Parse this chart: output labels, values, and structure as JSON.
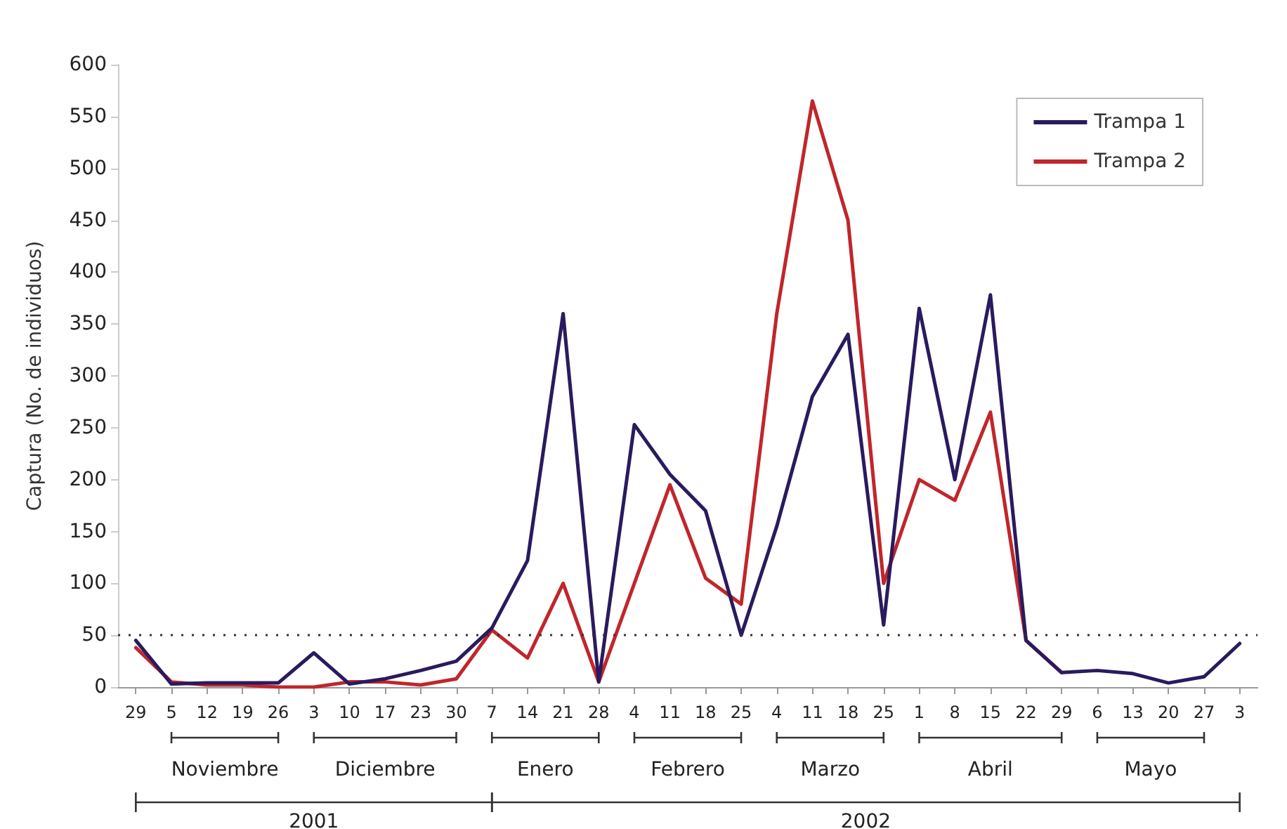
{
  "chart_data": {
    "type": "line",
    "ylabel": "Captura (No. de individuos)",
    "categories": [
      "29",
      "5",
      "12",
      "19",
      "26",
      "3",
      "10",
      "17",
      "23",
      "30",
      "7",
      "14",
      "21",
      "28",
      "4",
      "11",
      "18",
      "25",
      "4",
      "11",
      "18",
      "25",
      "1",
      "8",
      "15",
      "22",
      "29",
      "6",
      "13",
      "20",
      "27",
      "3"
    ],
    "series": [
      {
        "name": "Trampa 1",
        "color": "#2a1a5e",
        "values": [
          45,
          3,
          4,
          4,
          4,
          33,
          3,
          8,
          16,
          25,
          57,
          122,
          360,
          5,
          253,
          205,
          170,
          50,
          155,
          280,
          340,
          60,
          365,
          200,
          378,
          45,
          14,
          16,
          13,
          4,
          10,
          42
        ]
      },
      {
        "name": "Trampa 2",
        "color": "#c0262b",
        "values": [
          38,
          5,
          2,
          2,
          0,
          0,
          5,
          5,
          2,
          8,
          55,
          28,
          100,
          5,
          100,
          195,
          105,
          80,
          360,
          565,
          450,
          100,
          200,
          180,
          265,
          45,
          14,
          null,
          null,
          null,
          null,
          null
        ]
      }
    ],
    "annotations": [
      "Noviembre",
      "Diciembre",
      "Enero",
      "Febrero",
      "Marzo",
      "Abril",
      "Mayo",
      "2001",
      "2002"
    ],
    "ref_lines": [
      {
        "axis": "y",
        "value": 50,
        "line_style": "dotted",
        "color": "#333333"
      }
    ],
    "ylim": [
      0,
      600
    ],
    "yticks": [
      0,
      50,
      100,
      150,
      200,
      250,
      300,
      350,
      400,
      450,
      500,
      550,
      600
    ],
    "grid": false,
    "legend": "top right",
    "marker": "none",
    "line_style": "solid"
  }
}
